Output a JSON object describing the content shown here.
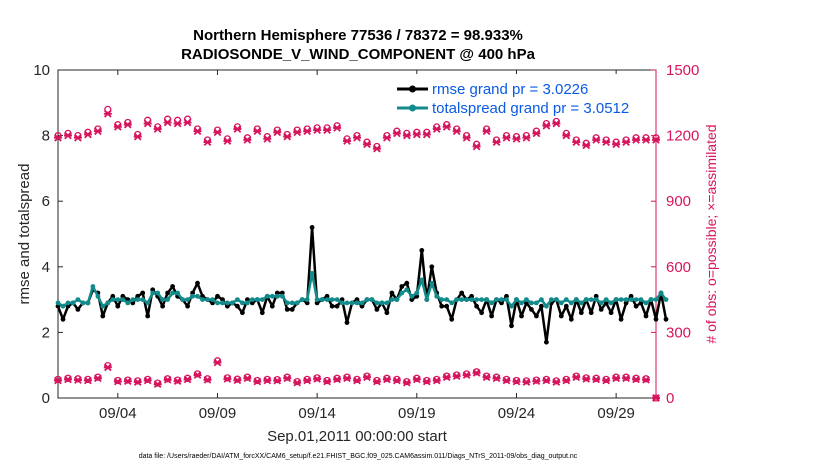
{
  "chart_data": {
    "type": "line",
    "title_line1": "Northern Hemisphere 77536 / 78372 = 98.933%",
    "title_line2": "RADIOSONDE_V_WIND_COMPONENT @ 400 hPa",
    "xlabel": "Sep.01,2011 00:00:00 start",
    "ylabel": "rmse and totalspread",
    "ylabel_right": "# of obs: o=possible; ×=assimilated",
    "xlim": [
      0,
      30
    ],
    "ylim": [
      0,
      10
    ],
    "ylim_right": [
      0,
      1500
    ],
    "xticks": [
      {
        "day": 3,
        "label": "09/04"
      },
      {
        "day": 8,
        "label": "09/09"
      },
      {
        "day": 13,
        "label": "09/14"
      },
      {
        "day": 18,
        "label": "09/19"
      },
      {
        "day": 23,
        "label": "09/24"
      },
      {
        "day": 28,
        "label": "09/29"
      }
    ],
    "yticks": [
      {
        "value": 0,
        "label": "0"
      },
      {
        "value": 2,
        "label": "2"
      },
      {
        "value": 4,
        "label": "4"
      },
      {
        "value": 6,
        "label": "6"
      },
      {
        "value": 8,
        "label": "8"
      },
      {
        "value": 10,
        "label": "10"
      }
    ],
    "yticks_right": [
      {
        "value": 0,
        "label": "0"
      },
      {
        "value": 300,
        "label": "300"
      },
      {
        "value": 600,
        "label": "600"
      },
      {
        "value": 900,
        "label": "900"
      },
      {
        "value": 1200,
        "label": "1200"
      },
      {
        "value": 1500,
        "label": "1500"
      }
    ],
    "series": [
      {
        "name": "rmse grand pr = 3.0226",
        "color": "#000000",
        "axis": "left",
        "x_start": 0,
        "x_step": 0.25,
        "values": [
          2.8,
          2.4,
          2.8,
          2.9,
          2.7,
          2.9,
          2.9,
          3.3,
          3.2,
          2.5,
          2.9,
          3.1,
          2.8,
          3.1,
          3.0,
          2.9,
          3.1,
          3.2,
          2.5,
          3.3,
          3.1,
          2.8,
          3.2,
          3.4,
          3.1,
          3.0,
          2.8,
          3.2,
          3.5,
          3.1,
          3.0,
          2.9,
          3.1,
          3.0,
          2.8,
          2.9,
          2.8,
          2.6,
          3.0,
          2.9,
          3.0,
          2.6,
          3.1,
          2.8,
          3.2,
          3.2,
          2.7,
          2.7,
          2.9,
          3.0,
          2.9,
          5.2,
          2.9,
          3.0,
          3.1,
          2.8,
          2.8,
          3.0,
          2.3,
          2.9,
          3.0,
          2.8,
          3.0,
          3.0,
          2.7,
          2.9,
          2.6,
          3.2,
          3.0,
          3.4,
          3.5,
          3.0,
          3.1,
          4.5,
          3.0,
          4.0,
          3.2,
          2.8,
          2.8,
          2.4,
          3.0,
          3.2,
          3.0,
          3.1,
          2.8,
          2.6,
          3.0,
          2.5,
          3.0,
          2.9,
          3.1,
          2.2,
          3.0,
          2.5,
          2.9,
          2.7,
          2.5,
          2.8,
          1.7,
          2.9,
          3.0,
          2.5,
          2.8,
          2.4,
          3.0,
          2.6,
          3.0,
          2.6,
          3.1,
          2.7,
          2.9,
          2.6,
          3.0,
          2.4,
          2.9,
          3.1,
          2.8,
          2.9,
          2.5,
          3.0,
          2.4,
          3.2,
          2.4
        ],
        "markers": "dot"
      },
      {
        "name": "totalspread grand pr = 3.0512",
        "color": "#118b8b",
        "axis": "left",
        "x_start": 0,
        "x_step": 0.25,
        "values": [
          2.9,
          2.8,
          2.9,
          2.9,
          3.0,
          2.9,
          2.9,
          3.4,
          3.1,
          2.8,
          2.9,
          3.0,
          3.0,
          3.0,
          2.9,
          3.0,
          3.0,
          3.0,
          2.9,
          3.2,
          3.2,
          3.0,
          3.0,
          3.2,
          3.2,
          3.0,
          3.0,
          3.1,
          3.1,
          3.0,
          3.0,
          3.0,
          2.9,
          2.9,
          2.9,
          2.9,
          3.0,
          2.9,
          2.9,
          3.0,
          3.0,
          3.0,
          3.1,
          3.1,
          3.1,
          3.1,
          2.9,
          2.9,
          2.9,
          3.0,
          3.0,
          3.8,
          3.0,
          3.0,
          3.0,
          3.0,
          3.0,
          2.9,
          2.9,
          2.9,
          2.9,
          2.9,
          3.0,
          3.0,
          2.9,
          2.9,
          2.9,
          3.0,
          3.0,
          3.2,
          3.3,
          3.1,
          3.2,
          3.6,
          3.0,
          3.5,
          3.1,
          3.0,
          3.0,
          2.9,
          3.0,
          3.0,
          3.0,
          3.0,
          3.0,
          3.0,
          3.0,
          2.9,
          3.0,
          3.0,
          3.0,
          2.8,
          3.0,
          2.9,
          3.0,
          2.9,
          2.9,
          3.0,
          2.8,
          3.0,
          3.0,
          2.9,
          3.0,
          2.9,
          3.0,
          2.9,
          3.0,
          3.0,
          3.0,
          2.9,
          3.0,
          2.9,
          3.0,
          3.0,
          3.0,
          3.0,
          3.0,
          3.0,
          2.9,
          3.0,
          3.0,
          3.2,
          3.0
        ],
        "markers": "dot"
      },
      {
        "name": "obs possible (upper)",
        "color": "#d6155e",
        "axis": "right",
        "x_start": 0,
        "x_step": 0.5,
        "values": [
          1200,
          1210,
          1200,
          1215,
          1230,
          1320,
          1250,
          1260,
          1205,
          1270,
          1240,
          1275,
          1270,
          1275,
          1230,
          1180,
          1225,
          1185,
          1240,
          1190,
          1230,
          1195,
          1225,
          1205,
          1225,
          1230,
          1235,
          1235,
          1245,
          1185,
          1200,
          1170,
          1150,
          1200,
          1220,
          1210,
          1215,
          1215,
          1240,
          1250,
          1230,
          1200,
          1160,
          1230,
          1180,
          1200,
          1195,
          1200,
          1220,
          1255,
          1265,
          1210,
          1180,
          1165,
          1190,
          1180,
          1170,
          1180,
          1190,
          1190,
          1190
        ],
        "markers": "circle"
      },
      {
        "name": "obs assimilated (upper)",
        "color": "#d6155e",
        "axis": "right",
        "x_start": 0,
        "x_step": 0.5,
        "values": [
          1190,
          1200,
          1190,
          1205,
          1220,
          1300,
          1240,
          1250,
          1195,
          1255,
          1230,
          1260,
          1255,
          1260,
          1220,
          1170,
          1215,
          1175,
          1230,
          1180,
          1220,
          1185,
          1215,
          1195,
          1215,
          1220,
          1225,
          1225,
          1235,
          1175,
          1190,
          1160,
          1140,
          1190,
          1210,
          1200,
          1205,
          1205,
          1230,
          1240,
          1220,
          1190,
          1150,
          1220,
          1170,
          1190,
          1185,
          1190,
          1210,
          1245,
          1255,
          1200,
          1170,
          1155,
          1180,
          1170,
          1160,
          1170,
          1180,
          1180,
          1180
        ],
        "markers": "x"
      },
      {
        "name": "obs possible (lower)",
        "color": "#d6155e",
        "axis": "right",
        "x_start": 0,
        "x_step": 0.5,
        "values": [
          85,
          90,
          88,
          85,
          95,
          148,
          80,
          82,
          78,
          85,
          68,
          88,
          82,
          90,
          110,
          88,
          170,
          92,
          86,
          95,
          80,
          85,
          84,
          95,
          75,
          85,
          92,
          80,
          90,
          95,
          85,
          100,
          80,
          90,
          85,
          75,
          90,
          80,
          85,
          100,
          105,
          110,
          120,
          100,
          95,
          85,
          80,
          78,
          82,
          85,
          78,
          85,
          100,
          92,
          90,
          85,
          95,
          95,
          90,
          88,
          0
        ],
        "markers": "circle"
      },
      {
        "name": "obs assimilated (lower)",
        "color": "#d6155e",
        "axis": "right",
        "x_start": 0,
        "x_step": 0.5,
        "values": [
          80,
          85,
          82,
          80,
          90,
          140,
          75,
          77,
          73,
          80,
          63,
          83,
          77,
          85,
          105,
          83,
          162,
          87,
          81,
          90,
          75,
          80,
          79,
          90,
          70,
          80,
          87,
          75,
          85,
          90,
          80,
          95,
          75,
          85,
          80,
          70,
          85,
          75,
          80,
          95,
          100,
          105,
          115,
          95,
          90,
          80,
          75,
          73,
          77,
          80,
          73,
          80,
          95,
          87,
          85,
          80,
          90,
          90,
          85,
          83,
          0
        ],
        "markers": "x"
      }
    ],
    "legend": [
      {
        "label": "rmse grand pr = 3.0226",
        "color": "#000000"
      },
      {
        "label": "totalspread grand pr = 3.0512",
        "color": "#118b8b"
      }
    ],
    "legend_position": "top-right",
    "grid": false,
    "footnote": "data file: /Users/raeder/DAI/ATM_forcXX/CAM6_setup/f.e21.FHIST_BGC.f09_025.CAM6assim.011/Diags_NTrS_2011-09/obs_diag_output.nc"
  }
}
